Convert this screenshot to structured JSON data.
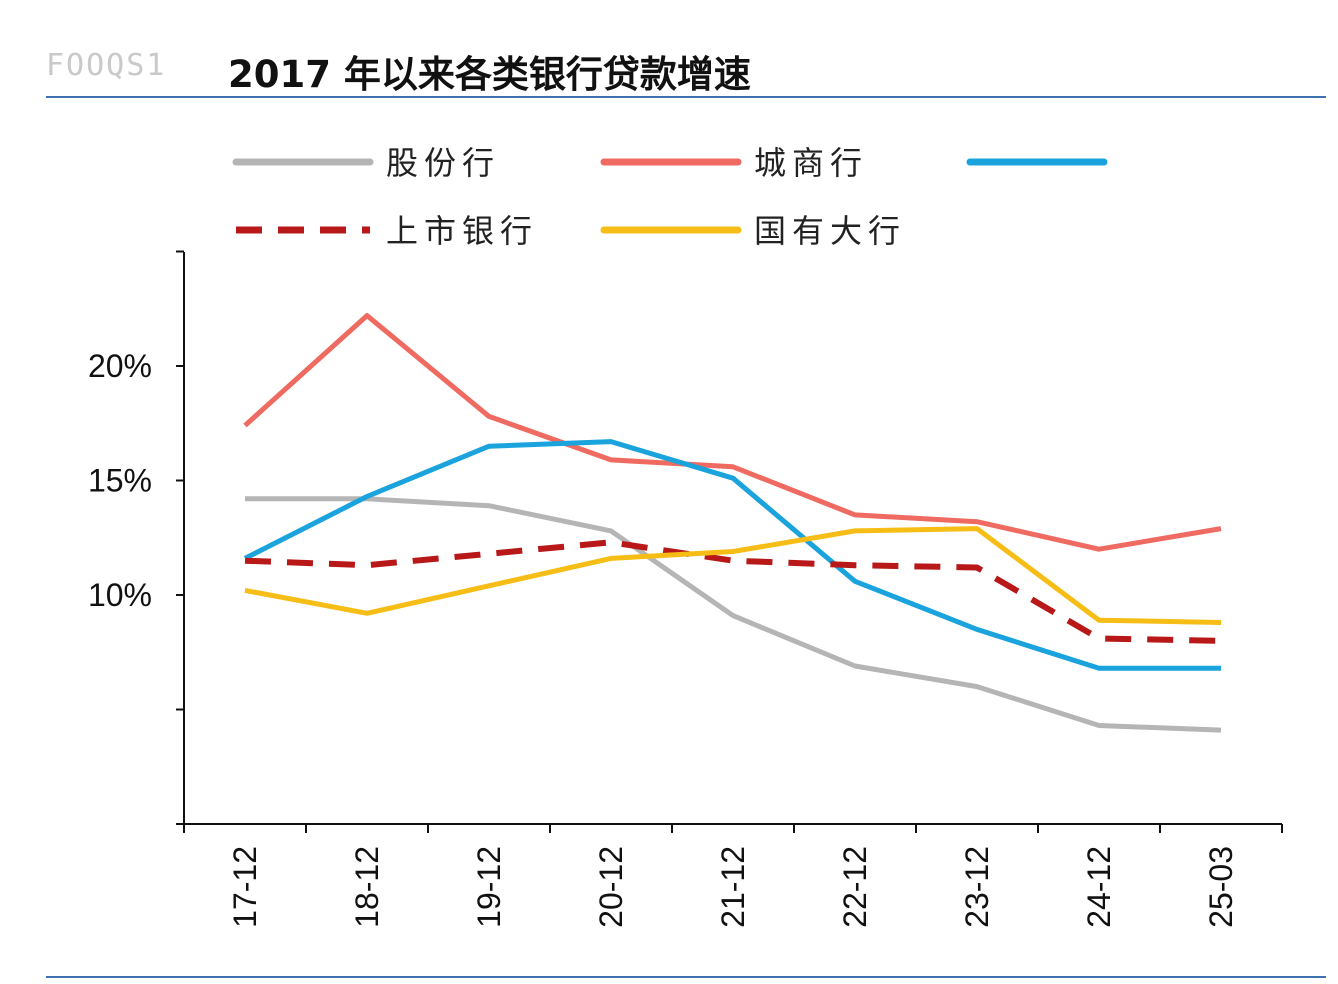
{
  "figure_label": "FOOQS1",
  "title": "2017 年以来各类银行贷款增速",
  "colors": {
    "股份行": "#b5b5b5",
    "城商行": "#ef6a60",
    "blue": "#1aa3dd",
    "上市银行": "#b81818",
    "国有大行": "#f6bd16",
    "rule": "#3c72b0"
  },
  "chart_data": {
    "type": "line",
    "title": "2017 年以来各类银行贷款增速",
    "xlabel": "",
    "ylabel": "",
    "categories": [
      "17-12",
      "18-12",
      "19-12",
      "20-12",
      "21-12",
      "22-12",
      "23-12",
      "24-12",
      "25-03"
    ],
    "ylim": [
      0,
      25
    ],
    "yticks": [
      0,
      5,
      10,
      15,
      20,
      25
    ],
    "ytick_labels": [
      "",
      "",
      "10%",
      "15%",
      "20%",
      ""
    ],
    "grid": false,
    "legend_position": "top",
    "series": [
      {
        "name": "股份行",
        "color": "#b5b5b5",
        "dash": false,
        "values": [
          14.2,
          14.2,
          13.9,
          12.8,
          9.1,
          6.9,
          6.0,
          4.3,
          4.1
        ]
      },
      {
        "name": "城商行",
        "color": "#ef6a60",
        "dash": false,
        "values": [
          17.4,
          22.2,
          17.8,
          15.9,
          15.6,
          13.5,
          13.2,
          12.0,
          12.9
        ]
      },
      {
        "name": "",
        "color": "#1aa3dd",
        "dash": false,
        "values": [
          11.6,
          14.3,
          16.5,
          16.7,
          15.1,
          10.6,
          8.5,
          6.8,
          6.8
        ]
      },
      {
        "name": "上市银行",
        "color": "#b81818",
        "dash": true,
        "values": [
          11.5,
          11.3,
          11.8,
          12.3,
          11.5,
          11.3,
          11.2,
          8.1,
          8.0
        ]
      },
      {
        "name": "国有大行",
        "color": "#f6bd16",
        "dash": false,
        "values": [
          10.2,
          9.2,
          10.4,
          11.6,
          11.9,
          12.8,
          12.9,
          8.9,
          8.8
        ]
      }
    ]
  }
}
